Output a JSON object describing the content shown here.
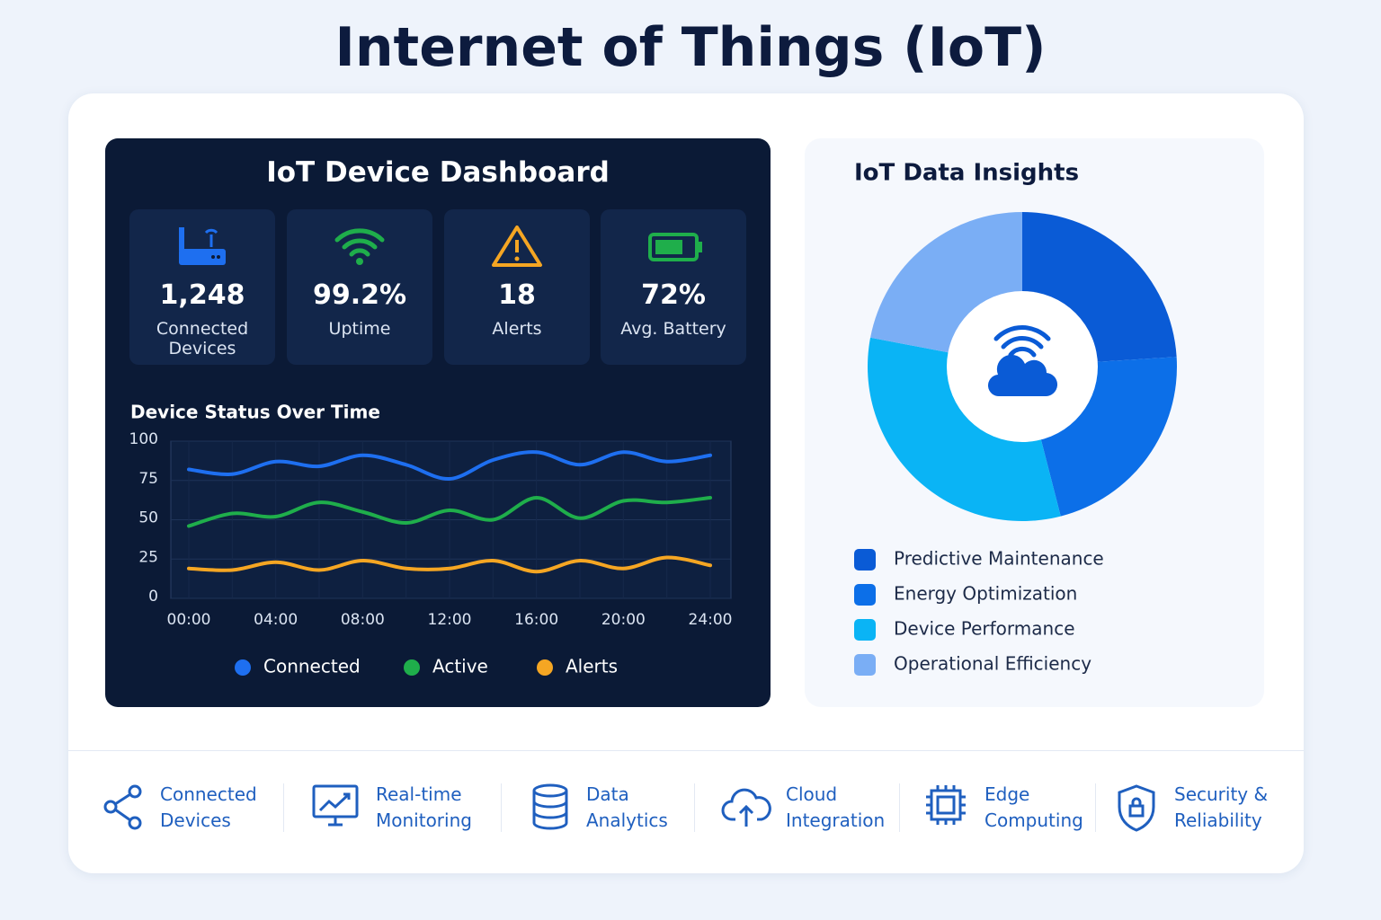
{
  "title": "Internet of Things (IoT)",
  "dashboard": {
    "title": "IoT Device Dashboard",
    "stats": [
      {
        "value": "1,248",
        "label": "Connected Devices"
      },
      {
        "value": "99.2%",
        "label": "Uptime"
      },
      {
        "value": "18",
        "label": "Alerts"
      },
      {
        "value": "72%",
        "label": "Avg. Battery"
      }
    ]
  },
  "chart_data": [
    {
      "type": "line",
      "title": "Device Status Over Time",
      "categories": [
        "00:00",
        null,
        "04:00",
        null,
        "08:00",
        null,
        "12:00",
        null,
        "16:00",
        null,
        "20:00",
        null,
        "24:00"
      ],
      "series": [
        {
          "name": "Connected",
          "color": "#1e6ff0",
          "values": [
            82,
            79,
            87,
            84,
            91,
            85,
            76,
            88,
            93,
            85,
            93,
            87,
            91
          ]
        },
        {
          "name": "Active",
          "color": "#1fae4b",
          "values": [
            46,
            54,
            52,
            61,
            55,
            48,
            56,
            50,
            64,
            51,
            62,
            61,
            64
          ]
        },
        {
          "name": "Alerts",
          "color": "#f5a623",
          "values": [
            19,
            18,
            23,
            18,
            24,
            19,
            19,
            24,
            17,
            24,
            19,
            26,
            21
          ]
        }
      ],
      "ylim": [
        0,
        100
      ],
      "yticks": [
        0,
        25,
        50,
        75,
        100
      ],
      "grid": true,
      "legend": "bottom"
    },
    {
      "type": "pie",
      "title": "IoT Data Insights",
      "categories": [
        "Predictive Maintenance",
        "Energy Optimization",
        "Device Performance",
        "Operational Efficiency"
      ],
      "values": [
        24,
        22,
        32,
        22
      ],
      "colors": [
        "#0a5bd6",
        "#0c6fe8",
        "#0ab4f5",
        "#7aaef5"
      ],
      "donut": true,
      "legend": "bottom"
    }
  ],
  "features": [
    "Connected Devices",
    "Real-time Monitoring",
    "Data Analytics",
    "Cloud Integration",
    "Edge Computing",
    "Security & Reliability"
  ]
}
